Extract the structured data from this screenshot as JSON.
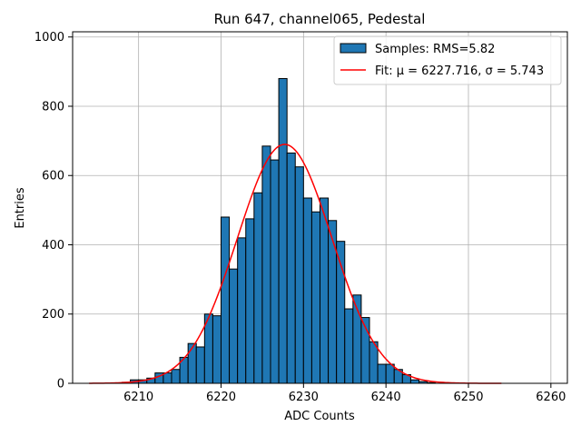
{
  "chart_data": {
    "type": "bar",
    "title": "Run 647, channel065, Pedestal",
    "xlabel": "ADC Counts",
    "ylabel": "Entries",
    "xlim": [
      6202,
      6262
    ],
    "ylim": [
      0,
      1015
    ],
    "grid": true,
    "legend_position": "top-right",
    "x_ticks": [
      6210,
      6220,
      6230,
      6240,
      6250,
      6260
    ],
    "y_ticks": [
      0,
      200,
      400,
      600,
      800,
      1000
    ],
    "colors": {
      "bars": "#1f77b4",
      "fit": "#ff0000"
    },
    "bins": {
      "x": [
        6208,
        6209,
        6210,
        6211,
        6212,
        6213,
        6214,
        6215,
        6216,
        6217,
        6218,
        6219,
        6220,
        6221,
        6222,
        6223,
        6224,
        6225,
        6226,
        6227,
        6228,
        6229,
        6230,
        6231,
        6232,
        6233,
        6234,
        6235,
        6236,
        6237,
        6238,
        6239,
        6240,
        6241,
        6242,
        6243,
        6244,
        6245
      ],
      "values": [
        3,
        10,
        10,
        15,
        30,
        30,
        40,
        75,
        115,
        105,
        200,
        195,
        480,
        330,
        420,
        475,
        550,
        685,
        645,
        880,
        665,
        625,
        535,
        495,
        535,
        470,
        410,
        215,
        255,
        190,
        120,
        55,
        55,
        40,
        25,
        10,
        5,
        2
      ]
    },
    "series": [
      {
        "name": "Samples: RMS=5.82",
        "type": "bar"
      },
      {
        "name": "Fit: μ = 6227.716, σ = 5.743",
        "type": "line",
        "mu": 6227.716,
        "sigma": 5.743,
        "amplitude": 690,
        "x_range": [
          6204,
          6254
        ]
      }
    ]
  }
}
